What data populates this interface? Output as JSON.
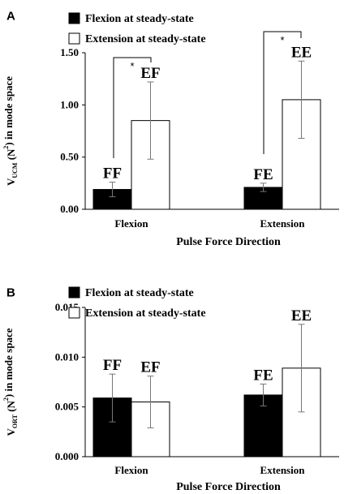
{
  "chart_data": [
    {
      "panel": "A",
      "type": "bar",
      "categories": [
        "Flexion",
        "Extension"
      ],
      "series": [
        {
          "name": "Flexion at steady-state",
          "color": "#000000",
          "values": [
            0.19,
            0.21
          ],
          "errors": [
            0.07,
            0.04
          ],
          "labels": [
            "FF",
            "FE"
          ]
        },
        {
          "name": "Extension at steady-state",
          "color": "#ffffff",
          "values": [
            0.85,
            1.05
          ],
          "errors": [
            0.37,
            0.37
          ],
          "labels": [
            "EF",
            "EE"
          ]
        }
      ],
      "ylim": [
        0,
        1.5
      ],
      "yticks": [
        "0.00",
        "0.50",
        "1.00",
        "1.50"
      ],
      "xlabel": "Pulse Force Direction",
      "ylabel": {
        "main": "V",
        "sub": "UCM",
        "unit": " (N",
        "sup": "2",
        "rest": ") in mode space"
      },
      "significance": [
        "*",
        "*"
      ],
      "grid": false,
      "legend": "top-left"
    },
    {
      "panel": "B",
      "type": "bar",
      "categories": [
        "Flexion",
        "Extension"
      ],
      "series": [
        {
          "name": "Flexion at steady-state",
          "color": "#000000",
          "values": [
            0.0059,
            0.0062
          ],
          "errors": [
            0.0024,
            0.0011
          ],
          "labels": [
            "FF",
            "FE"
          ]
        },
        {
          "name": "Extension at steady-state",
          "color": "#ffffff",
          "values": [
            0.0055,
            0.0089
          ],
          "errors": [
            0.0026,
            0.0044
          ],
          "labels": [
            "EF",
            "EE"
          ]
        }
      ],
      "ylim": [
        0,
        0.015
      ],
      "yticks": [
        "0.000",
        "0.005",
        "0.010",
        "0.015"
      ],
      "xlabel": "Pulse Force Direction",
      "ylabel": {
        "main": "V",
        "sub": "ORT",
        "unit": " (N",
        "sup": "2",
        "rest": ") in mode space"
      },
      "grid": false,
      "legend": "top-left"
    }
  ]
}
